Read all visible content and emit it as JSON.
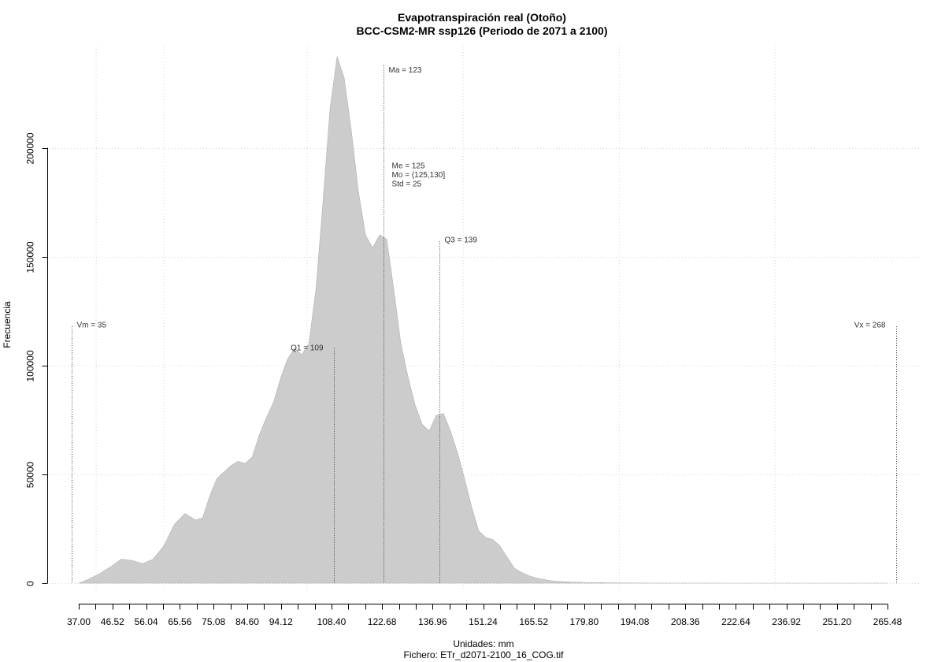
{
  "chart_data": {
    "type": "area",
    "title": "Evapotranspiración real (Otoño)",
    "subtitle": "BCC-CSM2-MR ssp126 (Periodo de 2071 a 2100)",
    "xlabel": "Unidades: mm",
    "caption": "Fichero: ETr_d2071-2100_16_COG.tif",
    "ylabel": "Frecuencia",
    "xlim": [
      37.0,
      265.48
    ],
    "ylim": [
      0,
      240000
    ],
    "grid": true,
    "fill_color": "#cccccc",
    "x_tick_labels": [
      "37.00",
      "46.52",
      "56.04",
      "65.56",
      "75.08",
      "84.60",
      "94.12",
      "108.40",
      "122.68",
      "136.96",
      "151.24",
      "165.52",
      "179.80",
      "194.08",
      "208.36",
      "222.64",
      "236.92",
      "251.20",
      "265.48"
    ],
    "y_ticks": [
      0,
      50000,
      100000,
      150000,
      200000
    ],
    "y_tick_labels": [
      "0",
      "50000",
      "100000",
      "150000",
      "200000"
    ],
    "x": [
      37,
      40,
      43,
      46,
      49,
      52,
      55,
      58,
      61,
      64,
      67,
      70,
      72,
      74,
      76,
      78,
      80,
      82,
      84,
      86,
      88,
      90,
      92,
      94,
      96,
      98,
      100,
      102,
      104,
      106,
      108,
      110,
      112,
      114,
      116,
      118,
      120,
      122,
      124,
      126,
      128,
      130,
      132,
      134,
      136,
      138,
      140,
      142,
      144,
      146,
      148,
      150,
      152,
      154,
      156,
      158,
      160,
      162,
      164,
      166,
      168,
      170,
      172,
      174,
      176,
      178,
      180,
      185,
      190,
      195,
      200,
      210,
      220,
      230,
      240,
      250,
      260,
      265.48
    ],
    "y": [
      0,
      2000,
      4500,
      7500,
      11000,
      10500,
      9000,
      11000,
      17000,
      27000,
      32000,
      29000,
      30000,
      40000,
      48000,
      51000,
      54000,
      56000,
      55000,
      58000,
      68000,
      76000,
      83000,
      94000,
      103000,
      108000,
      105000,
      110000,
      135000,
      175000,
      218000,
      242000,
      232000,
      208000,
      180000,
      160000,
      154000,
      160000,
      158000,
      135000,
      110000,
      95000,
      82000,
      73000,
      70000,
      77000,
      78000,
      70000,
      60000,
      48000,
      35000,
      24000,
      21000,
      20000,
      17000,
      12000,
      7000,
      5000,
      3500,
      2500,
      1800,
      1200,
      900,
      700,
      500,
      400,
      300,
      200,
      120,
      80,
      50,
      20,
      10,
      5,
      2,
      1,
      0,
      0
    ],
    "annotations": [
      {
        "text": "Vm = 35",
        "x": 35,
        "line_top": 118000,
        "label_y": 119000,
        "anchor": "start"
      },
      {
        "text": "Q1 = 109",
        "x": 109,
        "line_top": 108000,
        "label_y": 108500,
        "anchor": "end"
      },
      {
        "text": "Ma = 123",
        "x": 123,
        "line_top": 238000,
        "label_y": 236000,
        "anchor": "start"
      },
      {
        "text": "Q3 = 139",
        "x": 139,
        "line_top": 157000,
        "label_y": 158000,
        "anchor": "start"
      },
      {
        "text": "Vx = 268",
        "x": 268,
        "line_top": 118000,
        "label_y": 119000,
        "anchor": "end"
      }
    ],
    "stats_block": {
      "x": 125,
      "y": 195000,
      "lines": [
        "Me = 125",
        "Mo = (125,130]",
        "Std = 25"
      ]
    }
  }
}
